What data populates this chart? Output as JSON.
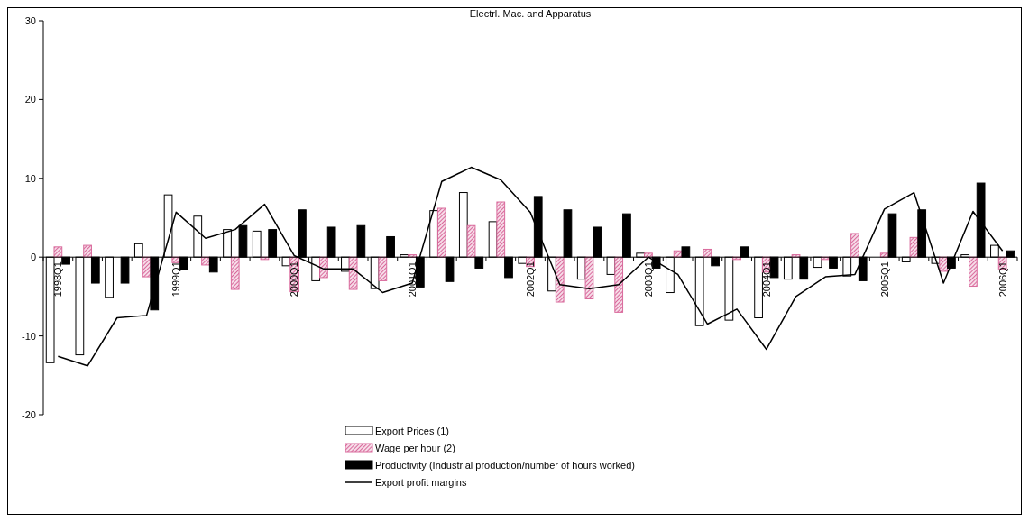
{
  "chart_data": {
    "type": "bar",
    "title": "Electrl. Mac. and Apparatus",
    "categories": [
      "1998Q1",
      null,
      null,
      null,
      "1999Q1",
      null,
      null,
      null,
      "2000Q1",
      null,
      null,
      null,
      "2001Q1",
      null,
      null,
      null,
      "2002Q1",
      null,
      null,
      null,
      "2003Q1",
      null,
      null,
      null,
      "2004Q1",
      null,
      null,
      null,
      "2005Q1",
      null,
      null,
      null,
      "2006Q1"
    ],
    "series": [
      {
        "name": "Export Prices (1)",
        "color": "#ffffff",
        "values": [
          -13.4,
          -12.4,
          -5.1,
          1.7,
          7.9,
          5.2,
          3.5,
          3.3,
          -1.1,
          -3.0,
          -1.8,
          -4.0,
          0.3,
          5.9,
          8.2,
          4.5,
          -0.8,
          -4.3,
          -2.8,
          -2.2,
          0.5,
          -4.5,
          -8.7,
          -8.0,
          -7.7,
          -2.8,
          -1.3,
          -2.4,
          0,
          -0.6,
          -0.8,
          0.3,
          1.5
        ]
      },
      {
        "name": "Wage per hour (2)",
        "color": "#d96a9c",
        "values": [
          1.3,
          1.5,
          0,
          -2.5,
          -0.7,
          -1.0,
          -4.1,
          -0.3,
          -4.4,
          -2.6,
          -4.1,
          -3.0,
          0.3,
          6.2,
          4.0,
          7.0,
          -1.2,
          -5.7,
          -5.3,
          -7.0,
          0.5,
          0.8,
          1.0,
          -0.3,
          -1.9,
          0.3,
          -0.3,
          3.0,
          0.5,
          2.5,
          -1.8,
          -3.7,
          -1.5
        ]
      },
      {
        "name": "Productivity (Industrial production/number of hours worked)",
        "color": "#000000",
        "values": [
          -0.9,
          -3.3,
          -3.3,
          -6.7,
          -1.6,
          -1.9,
          4.0,
          3.5,
          6.0,
          3.8,
          4.0,
          2.6,
          -3.8,
          -3.1,
          -1.4,
          -2.6,
          7.7,
          6.0,
          3.8,
          5.5,
          -1.4,
          1.3,
          -1.1,
          1.3,
          -2.6,
          -2.8,
          -1.4,
          -3.0,
          5.5,
          6.0,
          -1.4,
          9.4,
          0.8
        ]
      },
      {
        "name": "Export profit margins",
        "type": "line",
        "color": "#000000",
        "values": [
          -12.6,
          -13.8,
          -7.7,
          -7.4,
          5.7,
          2.4,
          3.5,
          6.7,
          0.2,
          -1.5,
          -1.5,
          -4.5,
          -3.3,
          9.6,
          11.4,
          9.8,
          5.7,
          -3.5,
          -4.0,
          -3.5,
          0,
          -2.2,
          -8.5,
          -6.6,
          -11.7,
          -5.0,
          -2.5,
          -2.2,
          6.1,
          8.2,
          -3.3,
          5.8,
          0.8
        ]
      }
    ],
    "ylim": [
      -20,
      30
    ],
    "yticks": [
      -20,
      -10,
      0,
      10,
      20,
      30
    ],
    "legend": "bottom",
    "grid": false
  }
}
